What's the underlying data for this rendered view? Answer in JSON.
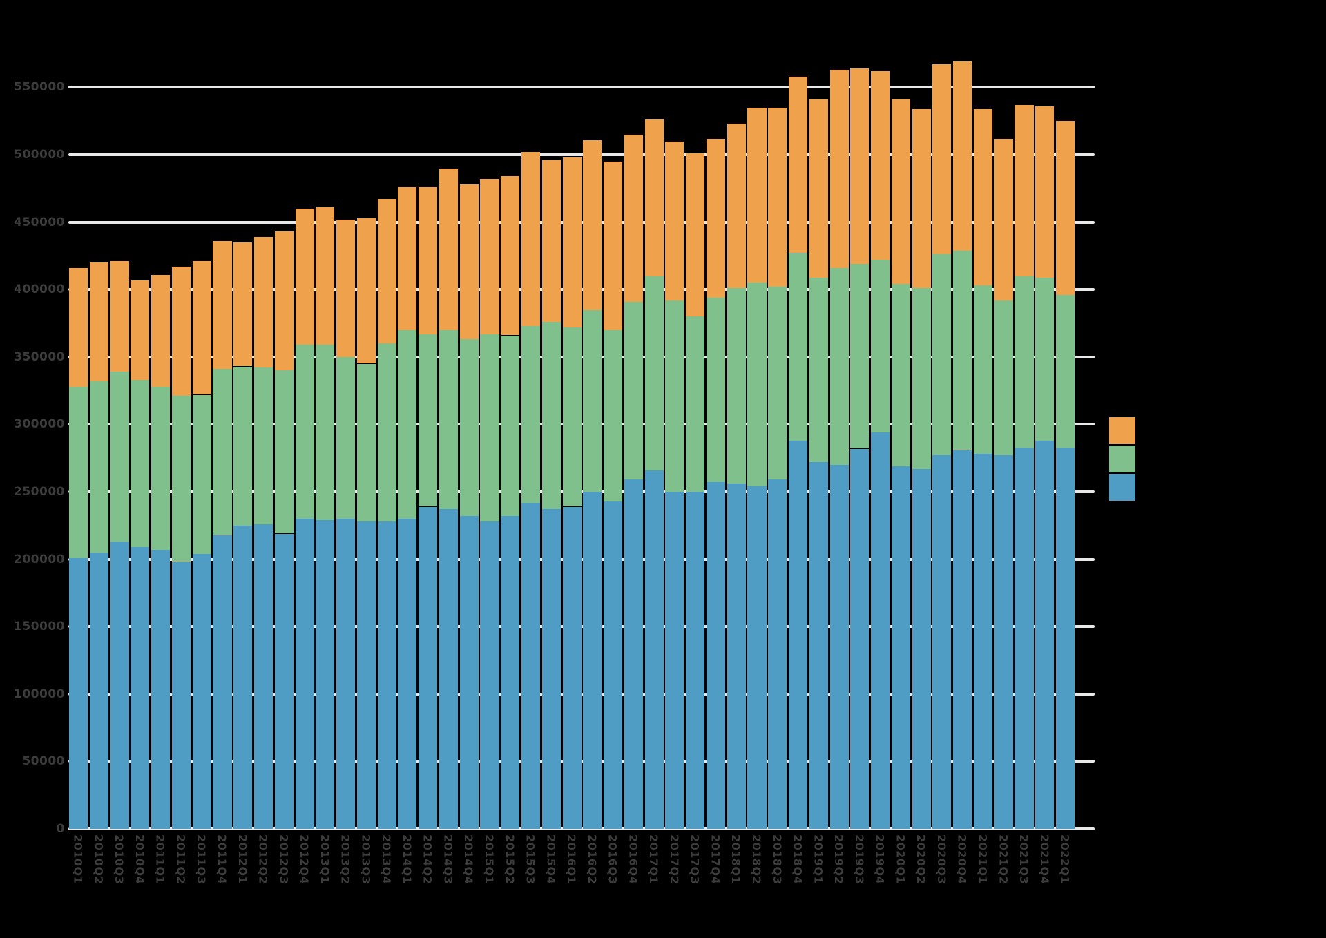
{
  "chart_data": {
    "type": "bar",
    "stacked": true,
    "orientation": "vertical",
    "background_color": "#000000",
    "gridline_color": "#E8E8E8",
    "tick_label_color": "#3C3C3C",
    "grid": true,
    "ylim": [
      0,
      583000
    ],
    "yticks": [
      0,
      50000,
      100000,
      150000,
      200000,
      250000,
      300000,
      350000,
      400000,
      450000,
      500000,
      550000
    ],
    "ytick_labels": [
      "0",
      "50000",
      "100000",
      "150000",
      "200000",
      "250000",
      "300000",
      "350000",
      "400000",
      "450000",
      "500000",
      "550000"
    ],
    "categories": [
      "2010Q1",
      "2010Q2",
      "2010Q3",
      "2010Q4",
      "2011Q1",
      "2011Q2",
      "2011Q3",
      "2011Q4",
      "2012Q1",
      "2012Q2",
      "2012Q3",
      "2012Q4",
      "2013Q1",
      "2013Q2",
      "2013Q3",
      "2013Q4",
      "2014Q1",
      "2014Q2",
      "2014Q3",
      "2014Q4",
      "2015Q1",
      "2015Q2",
      "2015Q3",
      "2015Q4",
      "2016Q1",
      "2016Q2",
      "2016Q3",
      "2016Q4",
      "2017Q1",
      "2017Q2",
      "2017Q3",
      "2017Q4",
      "2018Q1",
      "2018Q2",
      "2018Q3",
      "2018Q4",
      "2019Q1",
      "2019Q2",
      "2019Q3",
      "2019Q4",
      "2020Q1",
      "2020Q2",
      "2020Q3",
      "2020Q4",
      "2021Q1",
      "2021Q2",
      "2021Q3",
      "2021Q4",
      "2022Q1"
    ],
    "series": [
      {
        "name": "blue-series",
        "color": "#4F9DC4",
        "values": [
          201000,
          205000,
          213000,
          209000,
          207000,
          198000,
          204000,
          218000,
          225000,
          226000,
          219000,
          230000,
          229000,
          230000,
          228000,
          228000,
          230000,
          239000,
          237000,
          232000,
          228000,
          232000,
          242000,
          237000,
          239000,
          250000,
          243000,
          259000,
          266000,
          250000,
          250000,
          257000,
          256000,
          254000,
          259000,
          288000,
          272000,
          270000,
          282000,
          294000,
          269000,
          267000,
          277000,
          281000,
          278000,
          277000,
          283000,
          288000,
          283000
        ]
      },
      {
        "name": "green-series",
        "color": "#7FC08C",
        "values": [
          127000,
          127000,
          126000,
          124000,
          121000,
          123000,
          118000,
          123000,
          118000,
          116000,
          121000,
          129000,
          130000,
          120000,
          117000,
          132000,
          140000,
          128000,
          133000,
          131000,
          139000,
          134000,
          131000,
          139000,
          133000,
          135000,
          127000,
          132000,
          144000,
          142000,
          130000,
          137000,
          145000,
          151000,
          143000,
          139000,
          137000,
          146000,
          137000,
          128000,
          135000,
          134000,
          149000,
          148000,
          125000,
          115000,
          127000,
          121000,
          113000
        ]
      },
      {
        "name": "orange-series",
        "color": "#EFA24B",
        "values": [
          88000,
          88000,
          82000,
          74000,
          83000,
          96000,
          99000,
          95000,
          92000,
          97000,
          103000,
          101000,
          102000,
          102000,
          108000,
          107000,
          106000,
          109000,
          120000,
          115000,
          115000,
          118000,
          129000,
          120000,
          126000,
          126000,
          125000,
          124000,
          116000,
          118000,
          121000,
          118000,
          122000,
          130000,
          133000,
          131000,
          132000,
          147000,
          145000,
          140000,
          137000,
          133000,
          141000,
          140000,
          131000,
          120000,
          127000,
          127000,
          129000
        ]
      }
    ],
    "legend": {
      "position": "right",
      "items": [
        {
          "label": "",
          "color": "#EFA24B"
        },
        {
          "label": "",
          "color": "#7FC08C"
        },
        {
          "label": "",
          "color": "#4F9DC4"
        }
      ]
    }
  }
}
